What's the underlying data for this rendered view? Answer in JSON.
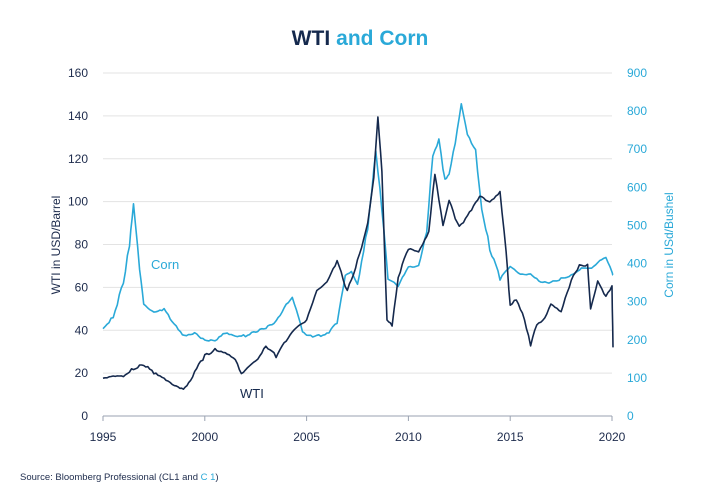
{
  "chart_data": {
    "type": "line",
    "title_part1": "WTI",
    "title_part2": "and Corn",
    "ylabel_left": "WTI in USD/Barrel",
    "ylabel_right": "Corn in USd/Bushel",
    "ylim_left": [
      0,
      160
    ],
    "ylim_right": [
      0,
      900
    ],
    "xlim": [
      1995,
      2020
    ],
    "x_ticks": [
      "1995",
      "2000",
      "2005",
      "2010",
      "2015",
      "2020"
    ],
    "y_ticks_left": [
      "0",
      "20",
      "40",
      "60",
      "80",
      "100",
      "120",
      "140",
      "160"
    ],
    "y_ticks_right": [
      "0",
      "100",
      "200",
      "300",
      "400",
      "500",
      "600",
      "700",
      "800",
      "900"
    ],
    "grid": true,
    "colors": {
      "wti": "#15294d",
      "corn": "#2aa9d8",
      "grid": "#e3e3e3",
      "axis": "#1d2b4c"
    },
    "series": [
      {
        "name": "WTI",
        "axis": "left",
        "x": [
          1995.0,
          1995.5,
          1996.0,
          1996.5,
          1997.0,
          1997.5,
          1998.0,
          1998.5,
          1998.95,
          1999.3,
          1999.6,
          2000.0,
          2000.5,
          2001.0,
          2001.5,
          2001.8,
          2002.2,
          2002.6,
          2003.0,
          2003.5,
          2004.0,
          2004.5,
          2005.0,
          2005.5,
          2006.0,
          2006.5,
          2007.0,
          2007.5,
          2008.0,
          2008.3,
          2008.5,
          2008.7,
          2008.95,
          2009.2,
          2009.5,
          2010.0,
          2010.5,
          2011.0,
          2011.3,
          2011.7,
          2012.0,
          2012.5,
          2013.0,
          2013.5,
          2014.0,
          2014.5,
          2014.8,
          2015.0,
          2015.3,
          2015.7,
          2016.0,
          2016.3,
          2016.7,
          2017.0,
          2017.5,
          2018.0,
          2018.4,
          2018.8,
          2018.95,
          2019.3,
          2019.7,
          2020.0,
          2020.05
        ],
        "y": [
          18,
          19,
          19,
          22,
          24,
          20,
          17,
          14,
          12,
          16,
          22,
          28,
          31,
          30,
          27,
          20,
          24,
          27,
          33,
          28,
          35,
          41,
          44,
          58,
          62,
          72,
          58,
          72,
          90,
          112,
          140,
          115,
          45,
          43,
          65,
          78,
          76,
          85,
          112,
          88,
          100,
          88,
          95,
          103,
          100,
          105,
          78,
          52,
          55,
          45,
          33,
          42,
          45,
          52,
          48,
          63,
          70,
          70,
          50,
          63,
          56,
          61,
          32
        ]
      },
      {
        "name": "Corn",
        "axis": "right",
        "x": [
          1995.0,
          1995.5,
          1996.0,
          1996.3,
          1996.5,
          1996.8,
          1997.0,
          1997.5,
          1998.0,
          1998.5,
          1999.0,
          1999.5,
          2000.0,
          2000.5,
          2001.0,
          2001.5,
          2002.0,
          2002.5,
          2003.0,
          2003.5,
          2004.0,
          2004.3,
          2004.8,
          2005.0,
          2005.5,
          2006.0,
          2006.5,
          2006.9,
          2007.2,
          2007.5,
          2008.0,
          2008.4,
          2008.7,
          2009.0,
          2009.5,
          2010.0,
          2010.5,
          2010.9,
          2011.2,
          2011.5,
          2011.8,
          2012.0,
          2012.3,
          2012.6,
          2012.9,
          2013.3,
          2013.6,
          2014.0,
          2014.5,
          2015.0,
          2015.5,
          2016.0,
          2016.5,
          2017.0,
          2017.5,
          2018.0,
          2018.5,
          2019.0,
          2019.4,
          2019.7,
          2020.0,
          2020.05
        ],
        "y": [
          230,
          260,
          350,
          450,
          550,
          380,
          290,
          270,
          280,
          240,
          210,
          220,
          200,
          200,
          220,
          210,
          210,
          220,
          230,
          245,
          290,
          310,
          220,
          210,
          210,
          215,
          250,
          370,
          380,
          350,
          500,
          700,
          550,
          360,
          340,
          390,
          390,
          480,
          680,
          720,
          620,
          640,
          720,
          820,
          740,
          700,
          550,
          440,
          360,
          390,
          370,
          370,
          350,
          350,
          360,
          370,
          390,
          390,
          410,
          420,
          380,
          370
        ]
      }
    ],
    "annotations": {
      "corn_label": "Corn",
      "wti_label": "WTI"
    }
  },
  "source": {
    "prefix": "Source: Bloomberg Professional  (",
    "cl1": "CL1",
    "and": " and ",
    "c1": "C 1",
    "suffix": ")"
  }
}
